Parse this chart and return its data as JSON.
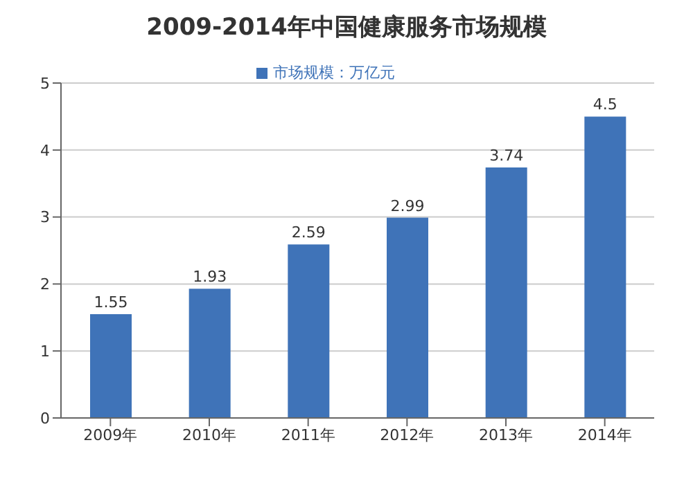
{
  "chart_data": {
    "type": "bar",
    "title": "2009-2014年中国健康服务市场规模",
    "categories": [
      "2009年",
      "2010年",
      "2011年",
      "2012年",
      "2013年",
      "2014年"
    ],
    "series": [
      {
        "name": "市场规模：万亿元",
        "color": "#3f73b8",
        "values": [
          1.55,
          1.93,
          2.59,
          2.99,
          3.74,
          4.5
        ]
      }
    ],
    "ylim": [
      0,
      5
    ],
    "yticks": [
      0,
      1,
      2,
      3,
      4,
      5
    ],
    "grid": "y",
    "legend": "top",
    "data_labels": true
  }
}
